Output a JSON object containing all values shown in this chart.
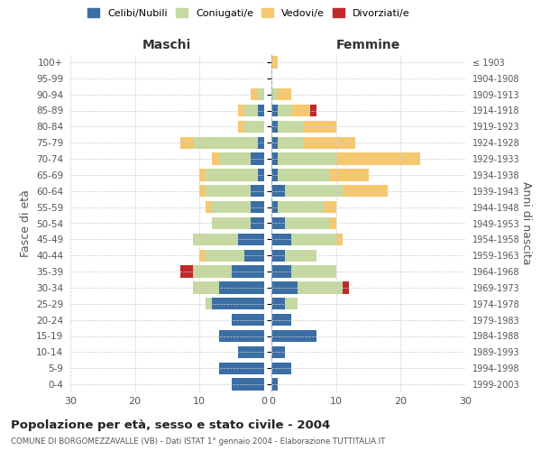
{
  "age_groups": [
    "0-4",
    "5-9",
    "10-14",
    "15-19",
    "20-24",
    "25-29",
    "30-34",
    "35-39",
    "40-44",
    "45-49",
    "50-54",
    "55-59",
    "60-64",
    "65-69",
    "70-74",
    "75-79",
    "80-84",
    "85-89",
    "90-94",
    "95-99",
    "100+"
  ],
  "birth_years": [
    "1999-2003",
    "1994-1998",
    "1989-1993",
    "1984-1988",
    "1979-1983",
    "1974-1978",
    "1969-1973",
    "1964-1968",
    "1959-1963",
    "1954-1958",
    "1949-1953",
    "1944-1948",
    "1939-1943",
    "1934-1938",
    "1929-1933",
    "1924-1928",
    "1919-1923",
    "1914-1918",
    "1909-1913",
    "1904-1908",
    "≤ 1903"
  ],
  "maschi": {
    "celibi": [
      5,
      7,
      4,
      7,
      5,
      8,
      7,
      5,
      3,
      4,
      2,
      2,
      2,
      1,
      2,
      1,
      0,
      1,
      0,
      0,
      0
    ],
    "coniugati": [
      0,
      0,
      0,
      0,
      0,
      1,
      4,
      6,
      6,
      7,
      6,
      6,
      7,
      8,
      5,
      10,
      3,
      2,
      1,
      0,
      0
    ],
    "vedovi": [
      0,
      0,
      0,
      0,
      0,
      0,
      0,
      0,
      1,
      0,
      0,
      1,
      1,
      1,
      1,
      2,
      1,
      1,
      1,
      0,
      0
    ],
    "divorziati": [
      0,
      0,
      0,
      0,
      0,
      0,
      0,
      2,
      0,
      0,
      0,
      0,
      0,
      0,
      0,
      0,
      0,
      0,
      0,
      0,
      0
    ]
  },
  "femmine": {
    "nubili": [
      1,
      3,
      2,
      7,
      3,
      2,
      4,
      3,
      2,
      3,
      2,
      1,
      2,
      1,
      1,
      1,
      1,
      1,
      0,
      0,
      0
    ],
    "coniugate": [
      0,
      0,
      0,
      0,
      0,
      2,
      7,
      7,
      5,
      7,
      7,
      7,
      9,
      8,
      9,
      4,
      4,
      2,
      1,
      0,
      0
    ],
    "vedove": [
      0,
      0,
      0,
      0,
      0,
      0,
      0,
      0,
      0,
      1,
      1,
      2,
      7,
      6,
      13,
      8,
      5,
      3,
      2,
      0,
      1
    ],
    "divorziate": [
      0,
      0,
      0,
      0,
      0,
      0,
      1,
      0,
      0,
      0,
      0,
      0,
      0,
      0,
      0,
      0,
      0,
      1,
      0,
      0,
      0
    ]
  },
  "colors": {
    "celibi_nubili": "#3a6ea5",
    "coniugati": "#c5d9a0",
    "vedovi": "#f5c86e",
    "divorziati": "#c0292a"
  },
  "xlim": 30,
  "title": "Popolazione per età, sesso e stato civile - 2004",
  "subtitle": "COMUNE DI BORGOMEZZAVALLE (VB) - Dati ISTAT 1° gennaio 2004 - Elaborazione TUTTITALIA.IT",
  "ylabel_left": "Fasce di età",
  "ylabel_right": "Anni di nascita",
  "col_maschi": "Maschi",
  "col_femmine": "Femmine",
  "legend_labels": [
    "Celibi/Nubili",
    "Coniugati/e",
    "Vedovi/e",
    "Divorziati/e"
  ],
  "background_color": "#ffffff",
  "grid_color": "#cccccc"
}
